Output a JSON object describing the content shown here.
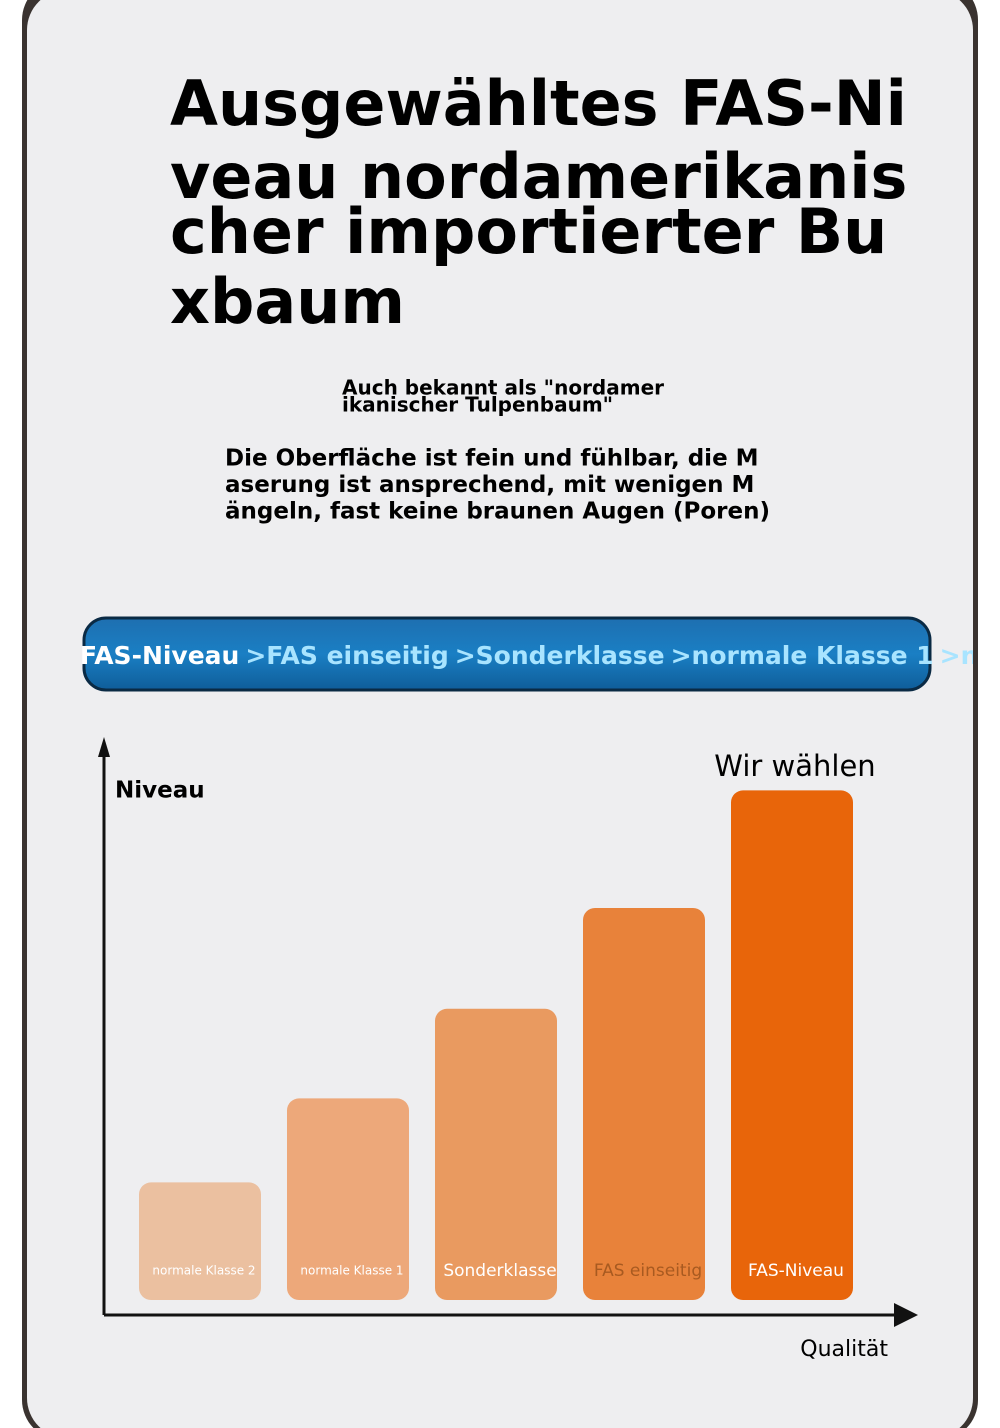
{
  "header": {
    "title_lines": [
      "Ausgewähltes FAS-Ni",
      "veau nordamerikanis",
      "cher importierter Bu",
      "xbaum"
    ],
    "subtitle_lines": [
      "Auch bekannt als \"nordamer",
      "ikanischer Tulpenbaum\""
    ],
    "description_lines": [
      "Die Oberfläche ist fein und fühlbar, die M",
      "aserung ist ansprechend, mit wenigen M",
      "ängeln, fast keine braunen Augen (Poren)"
    ]
  },
  "banner": {
    "items": [
      "FAS-Niveau",
      ">FAS einseitig",
      ">Sonderklasse",
      ">normale Klasse 1",
      ">normale Klas"
    ]
  },
  "chart_data": {
    "type": "bar",
    "y_label": "Niveau",
    "x_label": "Qualität",
    "annotation": "Wir wählen",
    "categories": [
      "normale Klasse 2",
      "normale Klasse 1",
      "Sonderklasse",
      "FAS einseitig",
      "FAS-Niveau"
    ],
    "values": [
      21,
      36,
      52,
      70,
      91
    ],
    "colors": [
      "#ebc0a0",
      "#eda87a",
      "#e99a60",
      "#e8823a",
      "#e8650a"
    ],
    "ylim": [
      0,
      100
    ]
  }
}
